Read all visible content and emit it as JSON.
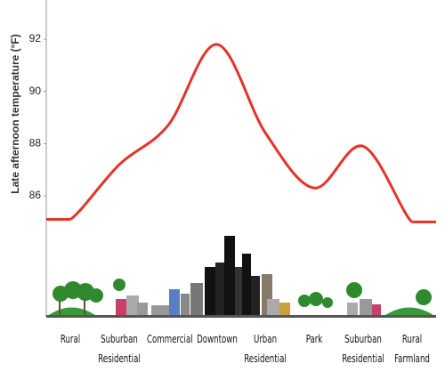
{
  "chart_data": {
    "type": "line",
    "y_label": "Late afternoon temperature (°F)",
    "categories": [
      "Rural",
      "Suburban Residential",
      "Commercial",
      "Downtown",
      "Urban Residential",
      "Park",
      "Suburban Residential",
      "Rural Farmland"
    ],
    "values": [
      85.1,
      87.2,
      88.7,
      91.8,
      88.4,
      86.3,
      87.9,
      85.0
    ],
    "color": "#e5332a",
    "ylim": [
      81.4,
      93.5
    ],
    "yticks": [
      86,
      88,
      90,
      92
    ],
    "grid": false
  }
}
